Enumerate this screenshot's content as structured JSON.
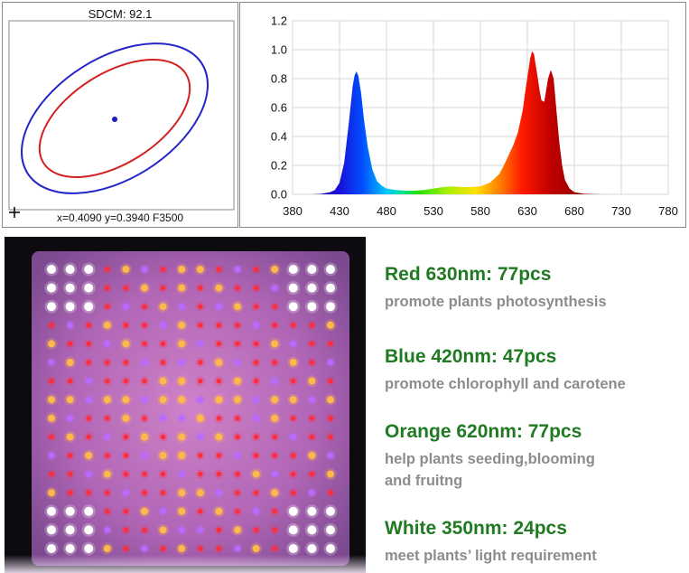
{
  "sdcm_panel": {
    "title": "SDCM:  92.1",
    "coords": "x=0.4090 y=0.3940 F3500"
  },
  "chart_data": {
    "type": "area",
    "title": "",
    "xlabel": "",
    "ylabel": "",
    "xlim": [
      380,
      780
    ],
    "ylim": [
      0,
      1.2
    ],
    "xticks": [
      380,
      430,
      480,
      530,
      580,
      630,
      680,
      730,
      780
    ],
    "yticks": [
      "0.0",
      "0.2",
      "0.4",
      "0.6",
      "0.8",
      "1.0",
      "1.2"
    ],
    "grid": true,
    "series": [
      {
        "name": "spectrum",
        "x": [
          400,
          410,
          420,
          425,
          430,
          435,
          440,
          444,
          446,
          448,
          450,
          453,
          456,
          460,
          465,
          470,
          475,
          480,
          490,
          500,
          510,
          520,
          530,
          540,
          550,
          560,
          570,
          580,
          590,
          600,
          605,
          610,
          615,
          620,
          625,
          628,
          631,
          633,
          635,
          637,
          640,
          643,
          645,
          648,
          650,
          652,
          655,
          658,
          661,
          664,
          667,
          670,
          675,
          680,
          690,
          700,
          710
        ],
        "y": [
          0.0,
          0.003,
          0.015,
          0.03,
          0.08,
          0.22,
          0.5,
          0.75,
          0.82,
          0.85,
          0.82,
          0.7,
          0.52,
          0.33,
          0.17,
          0.09,
          0.06,
          0.04,
          0.03,
          0.025,
          0.025,
          0.03,
          0.04,
          0.05,
          0.055,
          0.05,
          0.05,
          0.055,
          0.08,
          0.14,
          0.2,
          0.27,
          0.34,
          0.43,
          0.58,
          0.72,
          0.85,
          0.94,
          0.99,
          0.97,
          0.85,
          0.72,
          0.65,
          0.64,
          0.72,
          0.8,
          0.86,
          0.8,
          0.58,
          0.36,
          0.2,
          0.1,
          0.04,
          0.015,
          0.004,
          0.001,
          0.0
        ]
      }
    ]
  },
  "led_legend": [
    {
      "title": "Red 630nm: 77pcs",
      "desc": [
        "promote plants photosynthesis"
      ]
    },
    {
      "title": "Blue 420nm: 47pcs",
      "desc": [
        "promote chlorophyll and carotene"
      ]
    },
    {
      "title": "Orange 620nm: 77pcs",
      "desc": [
        "help plants seeding,blooming",
        "and fruitng"
      ]
    },
    {
      "title": "White 350nm: 24pcs",
      "desc": [
        "meet plants’ light requirement"
      ]
    }
  ]
}
